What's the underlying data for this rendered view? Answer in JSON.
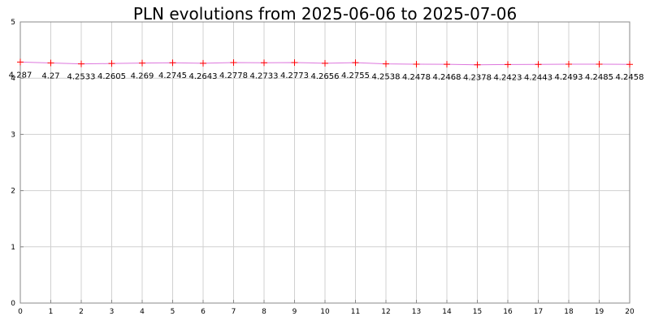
{
  "chart_data": {
    "type": "line",
    "title": "PLN evolutions from 2025-06-06 to 2025-07-06",
    "xlabel": "",
    "ylabel": "",
    "x": [
      0,
      1,
      2,
      3,
      4,
      5,
      6,
      7,
      8,
      9,
      10,
      11,
      12,
      13,
      14,
      15,
      16,
      17,
      18,
      19,
      20
    ],
    "y": [
      4.287,
      4.27,
      4.2533,
      4.2605,
      4.269,
      4.2745,
      4.2643,
      4.2778,
      4.2733,
      4.2773,
      4.2656,
      4.2755,
      4.2538,
      4.2478,
      4.2468,
      4.2378,
      4.2423,
      4.2443,
      4.2493,
      4.2485,
      4.2458
    ],
    "data_labels": [
      "4.287",
      "4.27",
      "4.2533",
      "4.2605",
      "4.269",
      "4.2745",
      "4.2643",
      "4.2778",
      "4.2733",
      "4.2773",
      "4.2656",
      "4.2755",
      "4.2538",
      "4.2478",
      "4.2468",
      "4.2378",
      "4.2423",
      "4.2443",
      "4.2493",
      "4.2485",
      "4.2458"
    ],
    "x_ticks": [
      "0",
      "1",
      "2",
      "3",
      "4",
      "5",
      "6",
      "7",
      "8",
      "9",
      "10",
      "11",
      "12",
      "13",
      "14",
      "15",
      "16",
      "17",
      "18",
      "19",
      "20"
    ],
    "y_ticks": [
      "0",
      "1",
      "2",
      "3",
      "4",
      "5"
    ],
    "xlim": [
      0,
      20
    ],
    "ylim": [
      0,
      5
    ],
    "grid": true,
    "legend": "none",
    "colors": {
      "line": "#dd77dd",
      "marker": "#ff0000",
      "grid": "#d0d0d0",
      "axis": "#888888"
    }
  }
}
